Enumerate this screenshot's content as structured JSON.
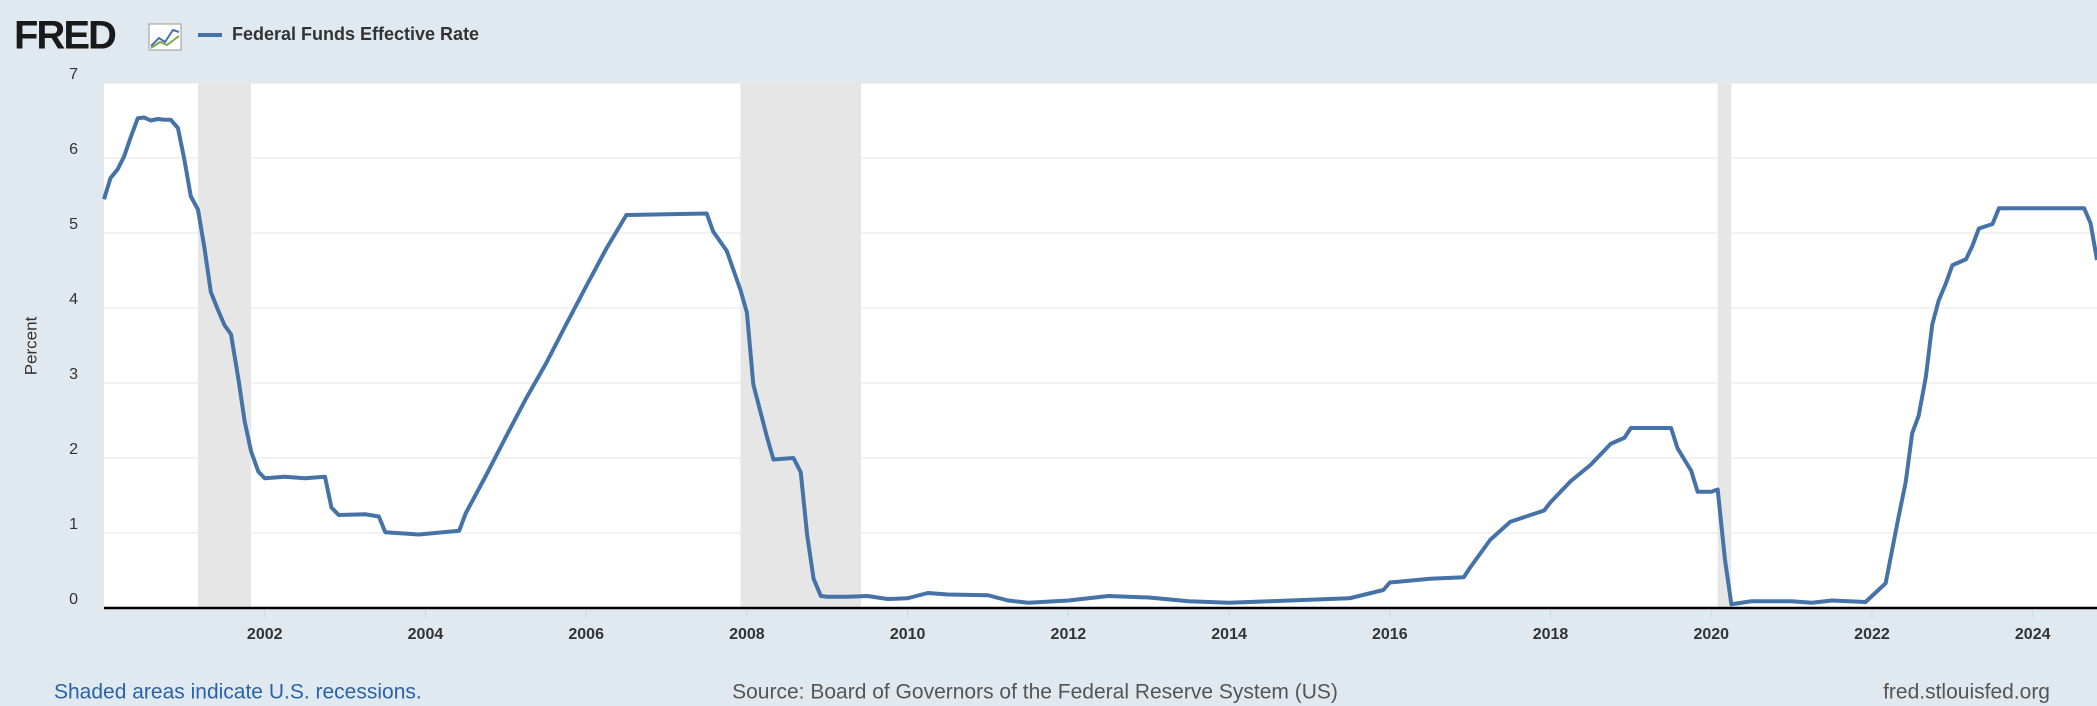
{
  "logo": "FRED",
  "chart_data": {
    "type": "line",
    "series": [
      {
        "name": "Federal Funds Effective Rate",
        "color": "#4572a7",
        "x": [
          2000.0,
          2000.08,
          2000.17,
          2000.25,
          2000.33,
          2000.42,
          2000.5,
          2000.58,
          2000.67,
          2000.75,
          2000.83,
          2000.92,
          2001.0,
          2001.08,
          2001.17,
          2001.25,
          2001.33,
          2001.42,
          2001.5,
          2001.58,
          2001.67,
          2001.75,
          2001.83,
          2001.92,
          2002.0,
          2002.25,
          2002.5,
          2002.75,
          2002.83,
          2002.92,
          2003.25,
          2003.42,
          2003.5,
          2003.92,
          2004.42,
          2004.5,
          2004.75,
          2005.0,
          2005.25,
          2005.5,
          2005.75,
          2006.0,
          2006.25,
          2006.5,
          2007.0,
          2007.5,
          2007.58,
          2007.75,
          2007.92,
          2008.0,
          2008.08,
          2008.25,
          2008.33,
          2008.58,
          2008.67,
          2008.75,
          2008.83,
          2008.92,
          2009.0,
          2009.25,
          2009.5,
          2009.75,
          2010.0,
          2010.25,
          2010.5,
          2011.0,
          2011.25,
          2011.5,
          2012.0,
          2012.5,
          2013.0,
          2013.5,
          2014.0,
          2014.5,
          2015.0,
          2015.5,
          2015.92,
          2016.0,
          2016.5,
          2016.92,
          2017.0,
          2017.25,
          2017.5,
          2017.92,
          2018.0,
          2018.25,
          2018.5,
          2018.75,
          2018.92,
          2019.0,
          2019.5,
          2019.58,
          2019.75,
          2019.83,
          2020.0,
          2020.08,
          2020.17,
          2020.25,
          2020.5,
          2021.0,
          2021.25,
          2021.5,
          2021.92,
          2022.17,
          2022.25,
          2022.33,
          2022.42,
          2022.5,
          2022.58,
          2022.67,
          2022.75,
          2022.83,
          2022.92,
          2023.0,
          2023.17,
          2023.25,
          2023.33,
          2023.5,
          2023.58,
          2024.0,
          2024.64,
          2024.72,
          2024.8
        ],
        "values": [
          5.45,
          5.73,
          5.85,
          6.02,
          6.27,
          6.53,
          6.54,
          6.5,
          6.52,
          6.51,
          6.51,
          6.4,
          5.98,
          5.49,
          5.31,
          4.8,
          4.21,
          3.97,
          3.77,
          3.65,
          3.07,
          2.49,
          2.09,
          1.82,
          1.73,
          1.75,
          1.73,
          1.75,
          1.34,
          1.24,
          1.25,
          1.22,
          1.01,
          0.98,
          1.03,
          1.26,
          1.76,
          2.28,
          2.79,
          3.26,
          3.78,
          4.29,
          4.79,
          5.24,
          5.25,
          5.26,
          5.02,
          4.76,
          4.24,
          3.94,
          2.98,
          2.28,
          1.98,
          2.0,
          1.81,
          0.97,
          0.39,
          0.16,
          0.15,
          0.15,
          0.16,
          0.12,
          0.13,
          0.2,
          0.18,
          0.17,
          0.1,
          0.07,
          0.1,
          0.16,
          0.14,
          0.09,
          0.07,
          0.09,
          0.11,
          0.13,
          0.24,
          0.34,
          0.39,
          0.41,
          0.54,
          0.91,
          1.15,
          1.3,
          1.41,
          1.69,
          1.91,
          2.19,
          2.27,
          2.4,
          2.4,
          2.13,
          1.83,
          1.55,
          1.55,
          1.58,
          0.65,
          0.05,
          0.09,
          0.09,
          0.07,
          0.1,
          0.08,
          0.33,
          0.77,
          1.21,
          1.68,
          2.33,
          2.56,
          3.08,
          3.78,
          4.1,
          4.33,
          4.57,
          4.65,
          4.83,
          5.06,
          5.12,
          5.33,
          5.33,
          5.33,
          5.13,
          4.64
        ]
      }
    ],
    "recessions": [
      {
        "start": 2001.17,
        "end": 2001.83
      },
      {
        "start": 2007.92,
        "end": 2009.42
      },
      {
        "start": 2020.08,
        "end": 2020.25
      }
    ],
    "recession_color": "#e6e6e6",
    "ylabel": "Percent",
    "xlim": [
      2000,
      2024.8
    ],
    "ylim": [
      0,
      7
    ],
    "xticks": [
      2002,
      2004,
      2006,
      2008,
      2010,
      2012,
      2014,
      2016,
      2018,
      2020,
      2022,
      2024
    ],
    "yticks": [
      0,
      1,
      2,
      3,
      4,
      5,
      6,
      7
    ],
    "grid": true,
    "note": "Shaded areas indicate U.S. recessions.",
    "source": "Source: Board of Governors of the Federal Reserve System (US)",
    "site": "fred.stlouisfed.org"
  }
}
